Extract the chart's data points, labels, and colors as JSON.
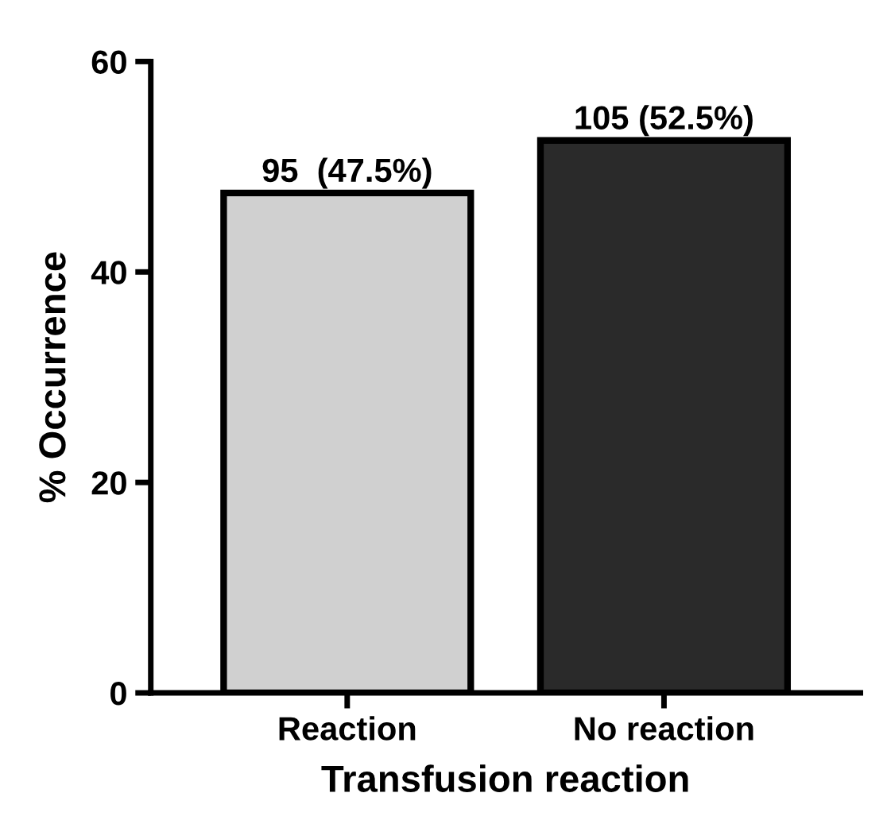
{
  "chart_data": {
    "type": "bar",
    "xlabel": "Transfusion reaction",
    "ylabel": "% Occurrence",
    "categories": [
      "Reaction",
      "No reaction"
    ],
    "values": [
      47.5,
      52.5
    ],
    "colors": [
      "#d0d0d0",
      "#2a2a2a"
    ],
    "value_labels": [
      "95  (47.5%)",
      "105 (52.5%)"
    ],
    "ylim": [
      0,
      60
    ],
    "yticks": [
      0,
      20,
      40,
      60
    ],
    "grid": false,
    "legend": false
  }
}
